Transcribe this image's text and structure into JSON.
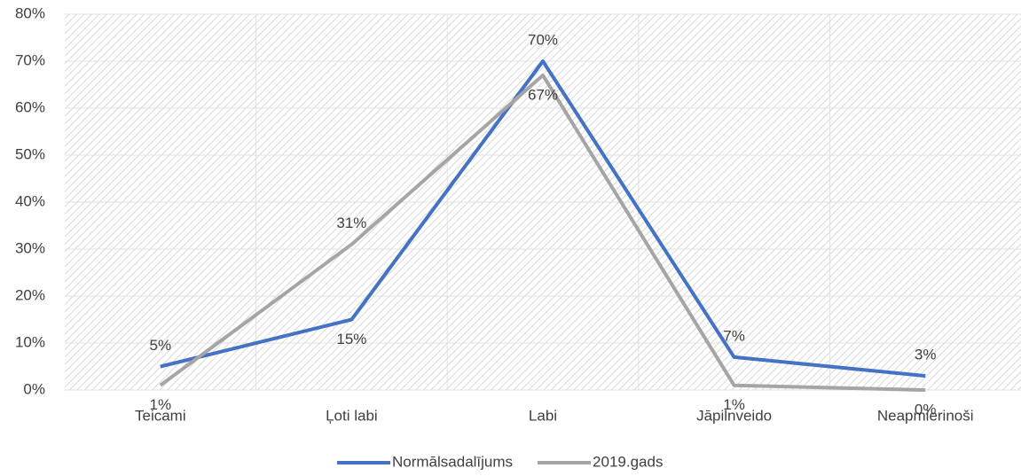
{
  "chart_data": {
    "type": "line",
    "categories": [
      "Teicami",
      "Ļoti labi",
      "Labi",
      "Jāpilnveido",
      "Neapmierinoši"
    ],
    "series": [
      {
        "name": "Normālsadalījums",
        "color": "#4472c4",
        "values": [
          5,
          15,
          70,
          7,
          3
        ],
        "value_labels": [
          "5%",
          "15%",
          "70%",
          "7%",
          "3%"
        ]
      },
      {
        "name": "2019.gads",
        "color": "#a5a5a5",
        "values": [
          1,
          31,
          67,
          1,
          0
        ],
        "value_labels": [
          "1%",
          "31%",
          "67%",
          "1%",
          "0%"
        ]
      }
    ],
    "ylim": [
      0,
      80
    ],
    "yticks": [
      {
        "value": 0,
        "label": "0%"
      },
      {
        "value": 10,
        "label": "10%"
      },
      {
        "value": 20,
        "label": "20%"
      },
      {
        "value": 30,
        "label": "30%"
      },
      {
        "value": 40,
        "label": "40%"
      },
      {
        "value": 50,
        "label": "50%"
      },
      {
        "value": 60,
        "label": "60%"
      },
      {
        "value": 70,
        "label": "70%"
      },
      {
        "value": 80,
        "label": "80%"
      }
    ],
    "grid": true,
    "legend": "bottom"
  }
}
